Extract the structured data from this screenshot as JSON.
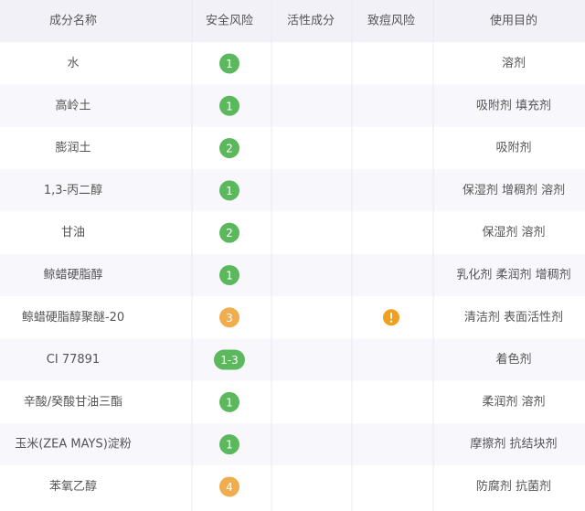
{
  "table": {
    "header": [
      "成分名称",
      "安全风险",
      "活性成分",
      "致痘风险",
      "使用目的"
    ],
    "rows": [
      {
        "name": "水",
        "safety": 1,
        "safety_color": "#5cb85c",
        "purpose": "溶剂"
      },
      {
        "name": "高岭土",
        "safety": 1,
        "safety_color": "#5cb85c",
        "purpose": "吸附剂 填充剂"
      },
      {
        "name": "膨润土",
        "safety": 2,
        "safety_color": "#5cb85c",
        "purpose": "吸附剂"
      },
      {
        "name": "1,3-丙二醇",
        "safety": 1,
        "safety_color": "#5cb85c",
        "purpose": "保湿剂 增稠剂 溶剂"
      },
      {
        "name": "甘油",
        "safety": 2,
        "safety_color": "#5cb85c",
        "purpose": "保湿剂 溶剂"
      },
      {
        "name": "鲸蜡硬脂醇",
        "safety": 1,
        "safety_color": "#5cb85c",
        "purpose": "乳化剂 柔润剂 增稠剂"
      },
      {
        "name": "鲸蜡硬脂醇聚醚-20",
        "safety": 3,
        "safety_color": "#f0ad4e",
        "acne_risk": true,
        "acne_color": "#f0a020",
        "purpose": "清洁剂 表面活性剂"
      },
      {
        "name": "CI 77891",
        "safety": "1-3",
        "safety_color": "#5cb85c",
        "purpose": "着色剂"
      },
      {
        "name": "辛酸/癸酸甘油三酯",
        "safety": 1,
        "safety_color": "#5cb85c",
        "purpose": "柔润剂 溶剂"
      },
      {
        "name": "玉米(ZEA MAYS)淀粉",
        "safety": 1,
        "safety_color": "#5cb85c",
        "purpose": "摩擦剂 抗结块剂"
      },
      {
        "name": "苯氧乙醇",
        "safety": 4,
        "safety_color": "#f0ad4e",
        "purpose": "防腐剂 抗菌剂"
      }
    ]
  }
}
